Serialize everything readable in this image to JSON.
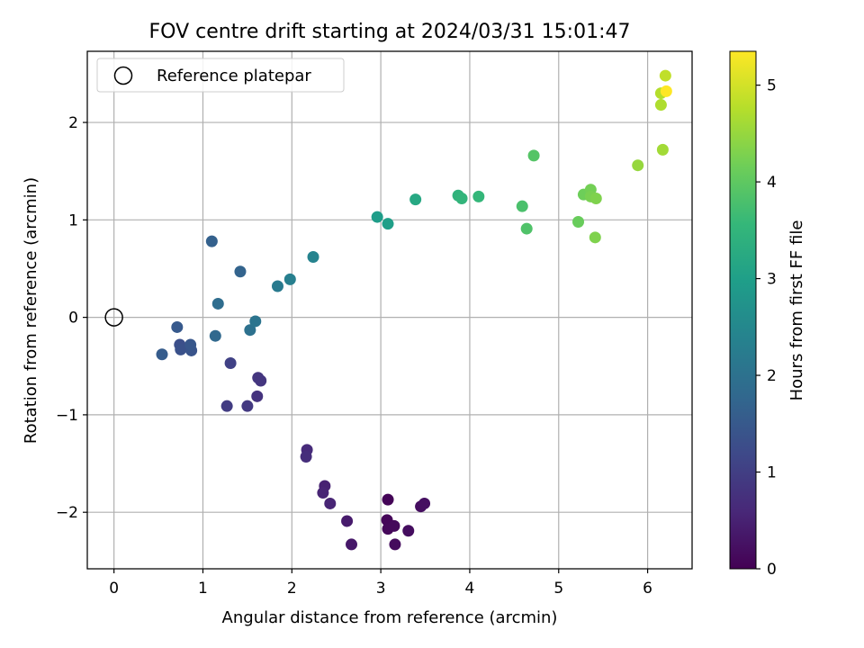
{
  "chart_data": {
    "type": "scatter",
    "title": "FOV centre drift starting at 2024/03/31 15:01:47",
    "xlabel": "Angular distance from reference (arcmin)",
    "ylabel": "Rotation from reference (arcmin)",
    "xlim": [
      -0.3,
      6.5
    ],
    "ylim": [
      -2.58,
      2.73
    ],
    "xticks": [
      0,
      1,
      2,
      3,
      4,
      5,
      6
    ],
    "xtick_labels": [
      "0",
      "1",
      "2",
      "3",
      "4",
      "5",
      "6"
    ],
    "yticks": [
      -2,
      -1,
      0,
      1,
      2
    ],
    "ytick_labels": [
      "−2",
      "−1",
      "0",
      "1",
      "2"
    ],
    "grid": true,
    "legend": {
      "position": "top-left",
      "entries": [
        "Reference platepar"
      ]
    },
    "reference_point": {
      "x": 0,
      "y": 0,
      "label": "Reference platepar",
      "marker": "open-circle"
    },
    "colorbar": {
      "label": "Hours from first FF file",
      "colormap": "viridis",
      "range": [
        0,
        5.35
      ],
      "ticks": [
        0,
        1,
        2,
        3,
        4,
        5
      ],
      "tick_labels": [
        "0",
        "1",
        "2",
        "3",
        "4",
        "5"
      ]
    },
    "colormap_stops": [
      "#440154",
      "#482878",
      "#3e4989",
      "#31688e",
      "#26828e",
      "#1f9e89",
      "#35b779",
      "#6ece58",
      "#b5de2b",
      "#fde725"
    ],
    "points": [
      {
        "x": 3.08,
        "y": -1.87,
        "h": 0.05
      },
      {
        "x": 3.07,
        "y": -2.08,
        "h": 0.08
      },
      {
        "x": 3.08,
        "y": -2.17,
        "h": 0.1
      },
      {
        "x": 3.15,
        "y": -2.14,
        "h": 0.12
      },
      {
        "x": 3.16,
        "y": -2.33,
        "h": 0.15
      },
      {
        "x": 3.31,
        "y": -2.19,
        "h": 0.18
      },
      {
        "x": 3.45,
        "y": -1.94,
        "h": 0.2
      },
      {
        "x": 3.49,
        "y": -1.91,
        "h": 0.22
      },
      {
        "x": 2.67,
        "y": -2.33,
        "h": 0.35
      },
      {
        "x": 2.62,
        "y": -2.09,
        "h": 0.4
      },
      {
        "x": 2.37,
        "y": -1.73,
        "h": 0.5
      },
      {
        "x": 2.35,
        "y": -1.8,
        "h": 0.55
      },
      {
        "x": 2.43,
        "y": -1.91,
        "h": 0.55
      },
      {
        "x": 2.17,
        "y": -1.36,
        "h": 0.65
      },
      {
        "x": 2.16,
        "y": -1.43,
        "h": 0.7
      },
      {
        "x": 1.61,
        "y": -0.81,
        "h": 0.8
      },
      {
        "x": 1.62,
        "y": -0.62,
        "h": 0.85
      },
      {
        "x": 1.65,
        "y": -0.65,
        "h": 0.85
      },
      {
        "x": 1.5,
        "y": -0.91,
        "h": 0.9
      },
      {
        "x": 1.27,
        "y": -0.91,
        "h": 0.95
      },
      {
        "x": 1.31,
        "y": -0.47,
        "h": 1.05
      },
      {
        "x": 0.74,
        "y": -0.28,
        "h": 1.3
      },
      {
        "x": 0.75,
        "y": -0.33,
        "h": 1.35
      },
      {
        "x": 0.87,
        "y": -0.34,
        "h": 1.4
      },
      {
        "x": 0.86,
        "y": -0.28,
        "h": 1.45
      },
      {
        "x": 0.71,
        "y": -0.1,
        "h": 1.5
      },
      {
        "x": 0.54,
        "y": -0.38,
        "h": 1.55
      },
      {
        "x": 1.1,
        "y": 0.78,
        "h": 1.65
      },
      {
        "x": 1.42,
        "y": 0.47,
        "h": 1.7
      },
      {
        "x": 1.14,
        "y": -0.19,
        "h": 1.8
      },
      {
        "x": 1.17,
        "y": 0.14,
        "h": 1.9
      },
      {
        "x": 1.53,
        "y": -0.13,
        "h": 2.0
      },
      {
        "x": 1.59,
        "y": -0.04,
        "h": 2.05
      },
      {
        "x": 1.84,
        "y": 0.32,
        "h": 2.2
      },
      {
        "x": 1.98,
        "y": 0.39,
        "h": 2.3
      },
      {
        "x": 2.24,
        "y": 0.62,
        "h": 2.4
      },
      {
        "x": 2.96,
        "y": 1.03,
        "h": 2.95
      },
      {
        "x": 3.08,
        "y": 0.96,
        "h": 3.0
      },
      {
        "x": 3.39,
        "y": 1.21,
        "h": 3.2
      },
      {
        "x": 3.87,
        "y": 1.25,
        "h": 3.45
      },
      {
        "x": 3.91,
        "y": 1.22,
        "h": 3.5
      },
      {
        "x": 4.1,
        "y": 1.24,
        "h": 3.55
      },
      {
        "x": 4.59,
        "y": 1.14,
        "h": 3.8
      },
      {
        "x": 4.64,
        "y": 0.91,
        "h": 3.85
      },
      {
        "x": 4.72,
        "y": 1.66,
        "h": 3.9
      },
      {
        "x": 5.22,
        "y": 0.98,
        "h": 4.1
      },
      {
        "x": 5.28,
        "y": 1.26,
        "h": 4.15
      },
      {
        "x": 5.36,
        "y": 1.31,
        "h": 4.2
      },
      {
        "x": 5.36,
        "y": 1.24,
        "h": 4.25
      },
      {
        "x": 5.42,
        "y": 1.22,
        "h": 4.3
      },
      {
        "x": 5.41,
        "y": 0.82,
        "h": 4.3
      },
      {
        "x": 5.89,
        "y": 1.56,
        "h": 4.5
      },
      {
        "x": 6.17,
        "y": 1.72,
        "h": 4.6
      },
      {
        "x": 6.15,
        "y": 2.18,
        "h": 4.7
      },
      {
        "x": 6.15,
        "y": 2.3,
        "h": 4.75
      },
      {
        "x": 6.2,
        "y": 2.48,
        "h": 4.85
      },
      {
        "x": 6.21,
        "y": 2.32,
        "h": 5.35
      }
    ]
  }
}
